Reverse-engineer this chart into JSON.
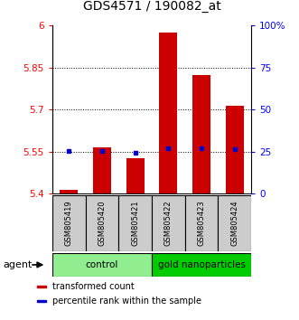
{
  "title": "GDS4571 / 190082_at",
  "samples": [
    "GSM805419",
    "GSM805420",
    "GSM805421",
    "GSM805422",
    "GSM805423",
    "GSM805424"
  ],
  "red_values": [
    5.413,
    5.565,
    5.527,
    5.975,
    5.825,
    5.715
  ],
  "blue_values": [
    25.5,
    25.5,
    24.5,
    27.0,
    27.0,
    26.5
  ],
  "ylim_left": [
    5.4,
    6.0
  ],
  "ylim_right": [
    0,
    100
  ],
  "left_ticks": [
    5.4,
    5.55,
    5.7,
    5.85,
    6.0
  ],
  "right_ticks": [
    0,
    25,
    50,
    75,
    100
  ],
  "right_tick_labels": [
    "0",
    "25",
    "50",
    "75",
    "100%"
  ],
  "ytick_labels_left": [
    "5.4",
    "5.55",
    "5.7",
    "5.85",
    "6"
  ],
  "hlines": [
    5.55,
    5.7,
    5.85
  ],
  "groups": [
    {
      "label": "control",
      "samples": [
        0,
        1,
        2
      ],
      "color": "#90EE90"
    },
    {
      "label": "gold nanoparticles",
      "samples": [
        3,
        4,
        5
      ],
      "color": "#00CC00"
    }
  ],
  "bar_color": "#CC0000",
  "dot_color": "#0000CC",
  "bar_bottom": 5.4,
  "agent_label": "agent",
  "legend_items": [
    {
      "color": "#CC0000",
      "label": "transformed count"
    },
    {
      "color": "#0000CC",
      "label": "percentile rank within the sample"
    }
  ],
  "sample_box_color": "#CCCCCC",
  "background_color": "#FFFFFF",
  "bar_width": 0.55
}
